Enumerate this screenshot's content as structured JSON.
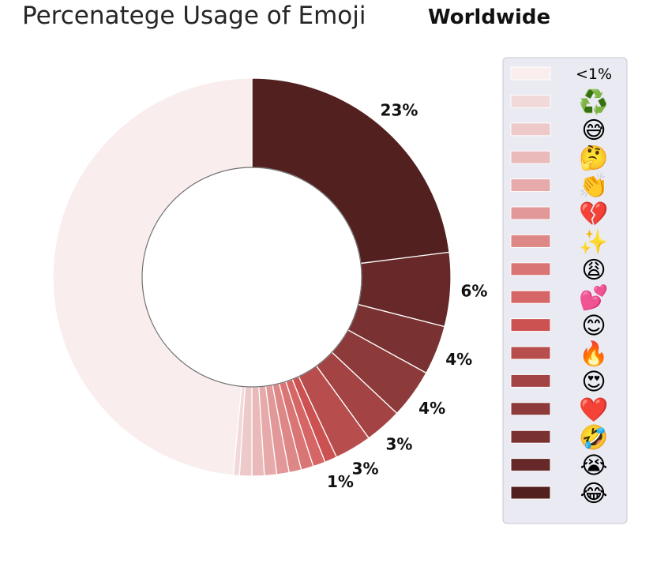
{
  "chart_data": {
    "type": "pie",
    "style": "donut",
    "title": "Percenatege Usage of Emoji",
    "subtitle": "Worldwide",
    "legend_position": "right",
    "slices": [
      {
        "label": "😂",
        "value": 23,
        "display": "23%",
        "color": "#532020"
      },
      {
        "label": "😭",
        "value": 6,
        "display": "6%",
        "color": "#662828"
      },
      {
        "label": "🤣",
        "value": 4,
        "display": "4%",
        "color": "#7a3131"
      },
      {
        "label": "❤️",
        "value": 4,
        "display": "4%",
        "color": "#8c3a3a"
      },
      {
        "label": "😍",
        "value": 3,
        "display": "3%",
        "color": "#a34343"
      },
      {
        "label": "🔥",
        "value": 3,
        "display": "3%",
        "color": "#b84d4d"
      },
      {
        "label": "😊",
        "value": 1,
        "display": "1%",
        "color": "#cc5252"
      },
      {
        "label": "💕",
        "value": 1,
        "color": "#d66565"
      },
      {
        "label": "😩",
        "value": 1,
        "color": "#da7575"
      },
      {
        "label": "✨",
        "value": 1,
        "color": "#de8787"
      },
      {
        "label": "💔",
        "value": 1,
        "color": "#e29898"
      },
      {
        "label": "👏",
        "value": 1,
        "color": "#e6aaaa"
      },
      {
        "label": "🤔",
        "value": 1,
        "color": "#eababa"
      },
      {
        "label": "😅",
        "value": 1,
        "color": "#eec9c9"
      },
      {
        "label": "♻️",
        "value": 0.5,
        "color": "#f2d9d9"
      },
      {
        "label": "<1%",
        "value": 48.5,
        "color": "#f9eded"
      }
    ]
  }
}
